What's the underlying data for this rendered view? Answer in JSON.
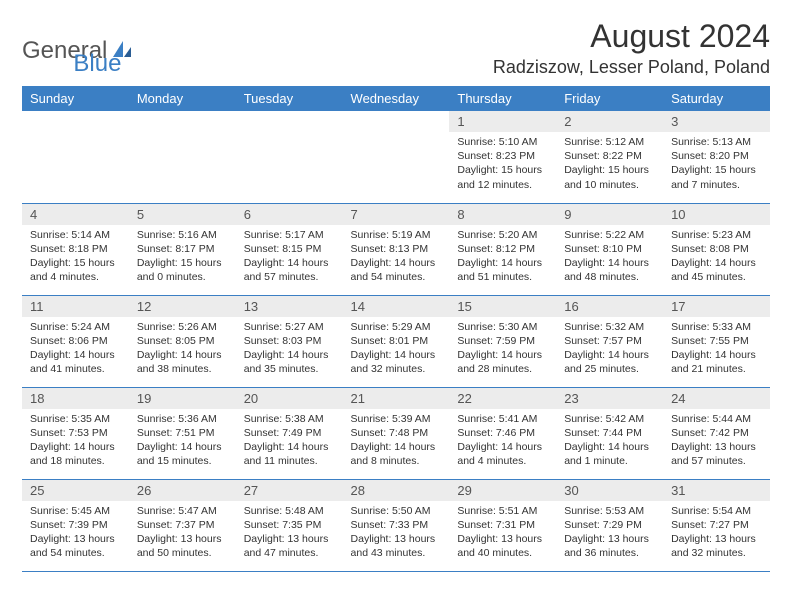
{
  "brand": {
    "part1": "General",
    "part2": "Blue"
  },
  "title": "August 2024",
  "location": "Radziszow, Lesser Poland, Poland",
  "colors": {
    "header_bg": "#3b7fc4",
    "header_text": "#ffffff",
    "daynum_bg": "#ececec",
    "border": "#3b7fc4",
    "text": "#333333",
    "background": "#ffffff"
  },
  "weekdays": [
    "Sunday",
    "Monday",
    "Tuesday",
    "Wednesday",
    "Thursday",
    "Friday",
    "Saturday"
  ],
  "weeks": [
    [
      {
        "empty": true
      },
      {
        "empty": true
      },
      {
        "empty": true
      },
      {
        "empty": true
      },
      {
        "day": "1",
        "sunrise": "Sunrise: 5:10 AM",
        "sunset": "Sunset: 8:23 PM",
        "daylight1": "Daylight: 15 hours",
        "daylight2": "and 12 minutes."
      },
      {
        "day": "2",
        "sunrise": "Sunrise: 5:12 AM",
        "sunset": "Sunset: 8:22 PM",
        "daylight1": "Daylight: 15 hours",
        "daylight2": "and 10 minutes."
      },
      {
        "day": "3",
        "sunrise": "Sunrise: 5:13 AM",
        "sunset": "Sunset: 8:20 PM",
        "daylight1": "Daylight: 15 hours",
        "daylight2": "and 7 minutes."
      }
    ],
    [
      {
        "day": "4",
        "sunrise": "Sunrise: 5:14 AM",
        "sunset": "Sunset: 8:18 PM",
        "daylight1": "Daylight: 15 hours",
        "daylight2": "and 4 minutes."
      },
      {
        "day": "5",
        "sunrise": "Sunrise: 5:16 AM",
        "sunset": "Sunset: 8:17 PM",
        "daylight1": "Daylight: 15 hours",
        "daylight2": "and 0 minutes."
      },
      {
        "day": "6",
        "sunrise": "Sunrise: 5:17 AM",
        "sunset": "Sunset: 8:15 PM",
        "daylight1": "Daylight: 14 hours",
        "daylight2": "and 57 minutes."
      },
      {
        "day": "7",
        "sunrise": "Sunrise: 5:19 AM",
        "sunset": "Sunset: 8:13 PM",
        "daylight1": "Daylight: 14 hours",
        "daylight2": "and 54 minutes."
      },
      {
        "day": "8",
        "sunrise": "Sunrise: 5:20 AM",
        "sunset": "Sunset: 8:12 PM",
        "daylight1": "Daylight: 14 hours",
        "daylight2": "and 51 minutes."
      },
      {
        "day": "9",
        "sunrise": "Sunrise: 5:22 AM",
        "sunset": "Sunset: 8:10 PM",
        "daylight1": "Daylight: 14 hours",
        "daylight2": "and 48 minutes."
      },
      {
        "day": "10",
        "sunrise": "Sunrise: 5:23 AM",
        "sunset": "Sunset: 8:08 PM",
        "daylight1": "Daylight: 14 hours",
        "daylight2": "and 45 minutes."
      }
    ],
    [
      {
        "day": "11",
        "sunrise": "Sunrise: 5:24 AM",
        "sunset": "Sunset: 8:06 PM",
        "daylight1": "Daylight: 14 hours",
        "daylight2": "and 41 minutes."
      },
      {
        "day": "12",
        "sunrise": "Sunrise: 5:26 AM",
        "sunset": "Sunset: 8:05 PM",
        "daylight1": "Daylight: 14 hours",
        "daylight2": "and 38 minutes."
      },
      {
        "day": "13",
        "sunrise": "Sunrise: 5:27 AM",
        "sunset": "Sunset: 8:03 PM",
        "daylight1": "Daylight: 14 hours",
        "daylight2": "and 35 minutes."
      },
      {
        "day": "14",
        "sunrise": "Sunrise: 5:29 AM",
        "sunset": "Sunset: 8:01 PM",
        "daylight1": "Daylight: 14 hours",
        "daylight2": "and 32 minutes."
      },
      {
        "day": "15",
        "sunrise": "Sunrise: 5:30 AM",
        "sunset": "Sunset: 7:59 PM",
        "daylight1": "Daylight: 14 hours",
        "daylight2": "and 28 minutes."
      },
      {
        "day": "16",
        "sunrise": "Sunrise: 5:32 AM",
        "sunset": "Sunset: 7:57 PM",
        "daylight1": "Daylight: 14 hours",
        "daylight2": "and 25 minutes."
      },
      {
        "day": "17",
        "sunrise": "Sunrise: 5:33 AM",
        "sunset": "Sunset: 7:55 PM",
        "daylight1": "Daylight: 14 hours",
        "daylight2": "and 21 minutes."
      }
    ],
    [
      {
        "day": "18",
        "sunrise": "Sunrise: 5:35 AM",
        "sunset": "Sunset: 7:53 PM",
        "daylight1": "Daylight: 14 hours",
        "daylight2": "and 18 minutes."
      },
      {
        "day": "19",
        "sunrise": "Sunrise: 5:36 AM",
        "sunset": "Sunset: 7:51 PM",
        "daylight1": "Daylight: 14 hours",
        "daylight2": "and 15 minutes."
      },
      {
        "day": "20",
        "sunrise": "Sunrise: 5:38 AM",
        "sunset": "Sunset: 7:49 PM",
        "daylight1": "Daylight: 14 hours",
        "daylight2": "and 11 minutes."
      },
      {
        "day": "21",
        "sunrise": "Sunrise: 5:39 AM",
        "sunset": "Sunset: 7:48 PM",
        "daylight1": "Daylight: 14 hours",
        "daylight2": "and 8 minutes."
      },
      {
        "day": "22",
        "sunrise": "Sunrise: 5:41 AM",
        "sunset": "Sunset: 7:46 PM",
        "daylight1": "Daylight: 14 hours",
        "daylight2": "and 4 minutes."
      },
      {
        "day": "23",
        "sunrise": "Sunrise: 5:42 AM",
        "sunset": "Sunset: 7:44 PM",
        "daylight1": "Daylight: 14 hours",
        "daylight2": "and 1 minute."
      },
      {
        "day": "24",
        "sunrise": "Sunrise: 5:44 AM",
        "sunset": "Sunset: 7:42 PM",
        "daylight1": "Daylight: 13 hours",
        "daylight2": "and 57 minutes."
      }
    ],
    [
      {
        "day": "25",
        "sunrise": "Sunrise: 5:45 AM",
        "sunset": "Sunset: 7:39 PM",
        "daylight1": "Daylight: 13 hours",
        "daylight2": "and 54 minutes."
      },
      {
        "day": "26",
        "sunrise": "Sunrise: 5:47 AM",
        "sunset": "Sunset: 7:37 PM",
        "daylight1": "Daylight: 13 hours",
        "daylight2": "and 50 minutes."
      },
      {
        "day": "27",
        "sunrise": "Sunrise: 5:48 AM",
        "sunset": "Sunset: 7:35 PM",
        "daylight1": "Daylight: 13 hours",
        "daylight2": "and 47 minutes."
      },
      {
        "day": "28",
        "sunrise": "Sunrise: 5:50 AM",
        "sunset": "Sunset: 7:33 PM",
        "daylight1": "Daylight: 13 hours",
        "daylight2": "and 43 minutes."
      },
      {
        "day": "29",
        "sunrise": "Sunrise: 5:51 AM",
        "sunset": "Sunset: 7:31 PM",
        "daylight1": "Daylight: 13 hours",
        "daylight2": "and 40 minutes."
      },
      {
        "day": "30",
        "sunrise": "Sunrise: 5:53 AM",
        "sunset": "Sunset: 7:29 PM",
        "daylight1": "Daylight: 13 hours",
        "daylight2": "and 36 minutes."
      },
      {
        "day": "31",
        "sunrise": "Sunrise: 5:54 AM",
        "sunset": "Sunset: 7:27 PM",
        "daylight1": "Daylight: 13 hours",
        "daylight2": "and 32 minutes."
      }
    ]
  ]
}
